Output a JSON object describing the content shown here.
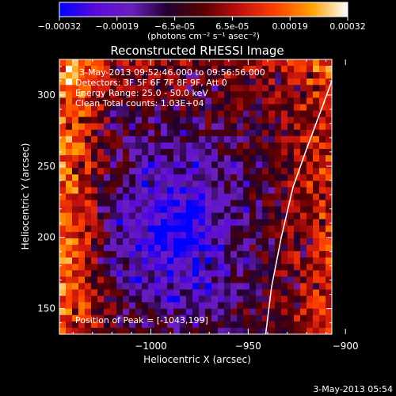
{
  "colorbar": {
    "ticks": [
      "-0.00032",
      "-0.00019",
      "-6.5e-05",
      "6.5e-05",
      "0.00019",
      "0.00032"
    ],
    "units": "(photons cm⁻² s⁻¹ asec⁻²)",
    "colors": [
      "#0000ff",
      "#5a0ad8",
      "#6a1fbd",
      "#200030",
      "#5a0000",
      "#c01010",
      "#ff4000",
      "#ffa000",
      "#ffffff"
    ]
  },
  "chart_data": {
    "type": "heatmap",
    "title": "Reconstructed RHESSI Image",
    "xlabel": "Heliocentric X (arcsec)",
    "ylabel": "Heliocentric Y (arcsec)",
    "xlim": [
      -1047,
      -907
    ],
    "ylim": [
      132,
      325
    ],
    "xticks": [
      -1000,
      -950,
      -900
    ],
    "xtick_labels": [
      "−1000",
      "−950",
      "−900"
    ],
    "yticks": [
      150,
      200,
      250,
      300
    ],
    "ytick_labels": [
      "150",
      "200",
      "250",
      "300"
    ],
    "annotations": [
      "3-May-2013 09:52:46.000 to 09:56:56.000",
      "Detectors: 3F 5F 6F 7F 8F 9F, Att 0",
      "Energy Range: 25.0 - 50.0 keV",
      "Clean     Total counts: 1.03E+04"
    ],
    "peak_label": "Position of Peak = [-1043,199]",
    "peak": [
      -1043,
      199
    ],
    "limb_points": [
      [
        -941,
        132
      ],
      [
        -938,
        165
      ],
      [
        -933,
        200
      ],
      [
        -927,
        235
      ],
      [
        -920,
        262
      ],
      [
        -911,
        295
      ],
      [
        -903,
        325
      ]
    ]
  },
  "timestamp": "3-May-2013 05:54"
}
